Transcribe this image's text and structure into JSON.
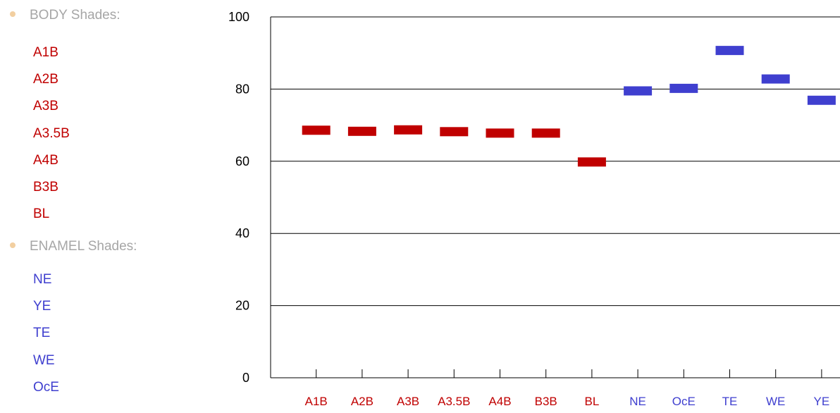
{
  "legend": {
    "body": {
      "heading": "BODY Shades:",
      "items": [
        "A1B",
        "A2B",
        "A3B",
        "A3.5B",
        "A4B",
        "B3B",
        "BL"
      ],
      "color": "#c00000"
    },
    "enamel": {
      "heading": "ENAMEL Shades:",
      "items": [
        "NE",
        "YE",
        "TE",
        "WE",
        "OcE"
      ],
      "color": "#3f3fcf"
    }
  },
  "chart_data": {
    "type": "scatter",
    "categories": [
      "A1B",
      "A2B",
      "A3B",
      "A3.5B",
      "A4B",
      "B3B",
      "BL",
      "NE",
      "OcE",
      "TE",
      "WE",
      "YE"
    ],
    "values": [
      68.6,
      68.3,
      68.7,
      68.2,
      67.8,
      67.8,
      59.8,
      79.5,
      80.2,
      90.7,
      82.8,
      76.9
    ],
    "category_colors": [
      "#c00000",
      "#c00000",
      "#c00000",
      "#c00000",
      "#c00000",
      "#c00000",
      "#c00000",
      "#3f3fcf",
      "#3f3fcf",
      "#3f3fcf",
      "#3f3fcf",
      "#3f3fcf"
    ],
    "ylim": [
      0,
      100
    ],
    "yticks": [
      0,
      20,
      40,
      60,
      80,
      100
    ],
    "marker": "dash",
    "grid": true,
    "title": "",
    "xlabel": "",
    "ylabel": ""
  }
}
